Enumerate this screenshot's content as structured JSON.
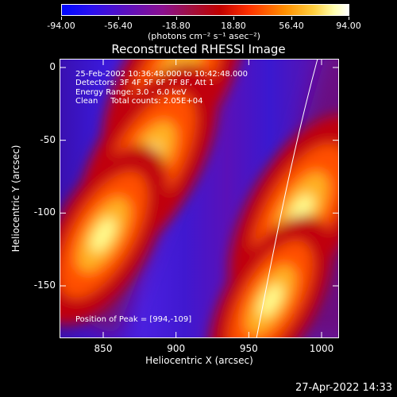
{
  "colorbar": {
    "ticks": [
      "-94.00",
      "-56.40",
      "-18.80",
      "18.80",
      "56.40",
      "94.00"
    ],
    "unit": "(photons cm⁻² s⁻¹ asec⁻²)"
  },
  "title": "Reconstructed RHESSI Image",
  "info": {
    "time": "25-Feb-2002 10:36:48.000 to 10:42:48.000",
    "detectors": "Detectors: 3F 4F 5F 6F 7F 8F, Att 1",
    "energy": "Energy Range: 3.0 - 6.0 keV",
    "clean": "Clean     Total counts: 2.05E+04",
    "peak": "Position of Peak = [994,-109]"
  },
  "timestamp": "27-Apr-2022 14:33",
  "chart_data": {
    "type": "heatmap",
    "title": "Reconstructed RHESSI Image",
    "xlabel": "Heliocentric X (arcsec)",
    "ylabel": "Heliocentric Y (arcsec)",
    "xlim": [
      820,
      1012
    ],
    "ylim": [
      -186,
      6
    ],
    "xticks": [
      "850",
      "900",
      "950",
      "1000"
    ],
    "yticks": [
      "0",
      "-50",
      "-100",
      "-150"
    ],
    "zlim": [
      -94.0,
      94.0
    ],
    "peak": [
      994,
      -109
    ],
    "sources": [
      {
        "x": 898,
        "y": -10,
        "value": 94
      },
      {
        "x": 880,
        "y": -65,
        "value": 94
      },
      {
        "x": 850,
        "y": -115,
        "value": 85
      },
      {
        "x": 985,
        "y": -100,
        "value": 94
      },
      {
        "x": 965,
        "y": -160,
        "value": 80
      }
    ]
  }
}
